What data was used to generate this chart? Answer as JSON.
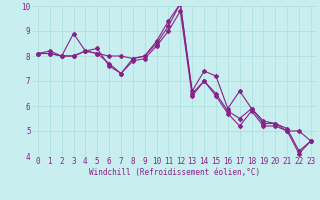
{
  "x": [
    0,
    1,
    2,
    3,
    4,
    5,
    6,
    7,
    8,
    9,
    10,
    11,
    12,
    13,
    14,
    15,
    16,
    17,
    18,
    19,
    20,
    21,
    22,
    23
  ],
  "line1": [
    8.1,
    8.1,
    8.0,
    8.9,
    8.2,
    8.1,
    8.0,
    8.0,
    7.9,
    8.0,
    8.6,
    9.4,
    10.1,
    6.6,
    7.4,
    7.2,
    5.9,
    6.6,
    5.9,
    5.4,
    5.3,
    5.0,
    5.0,
    4.6
  ],
  "line2": [
    8.1,
    8.2,
    8.0,
    8.0,
    8.2,
    8.3,
    7.6,
    7.3,
    7.9,
    8.0,
    8.5,
    9.2,
    10.1,
    6.5,
    7.0,
    6.5,
    5.8,
    5.5,
    5.9,
    5.3,
    5.3,
    5.1,
    4.2,
    4.6
  ],
  "line3": [
    8.1,
    8.1,
    8.0,
    8.0,
    8.2,
    8.1,
    7.7,
    7.3,
    7.8,
    7.9,
    8.4,
    9.0,
    9.8,
    6.4,
    7.0,
    6.4,
    5.7,
    5.2,
    5.8,
    5.2,
    5.2,
    5.0,
    4.1,
    4.6
  ],
  "line_color": "#882288",
  "background_color": "#c8eef0",
  "grid_color": "#aadddd",
  "xlabel": "Windchill (Refroidissement éolien,°C)",
  "ylim": [
    4,
    10
  ],
  "xlim": [
    -0.5,
    23.5
  ],
  "yticks": [
    4,
    5,
    6,
    7,
    8,
    9,
    10
  ],
  "xticks": [
    0,
    1,
    2,
    3,
    4,
    5,
    6,
    7,
    8,
    9,
    10,
    11,
    12,
    13,
    14,
    15,
    16,
    17,
    18,
    19,
    20,
    21,
    22,
    23
  ],
  "tick_fontsize": 5.5,
  "xlabel_fontsize": 5.5,
  "marker_size": 2.0,
  "linewidth": 0.8
}
